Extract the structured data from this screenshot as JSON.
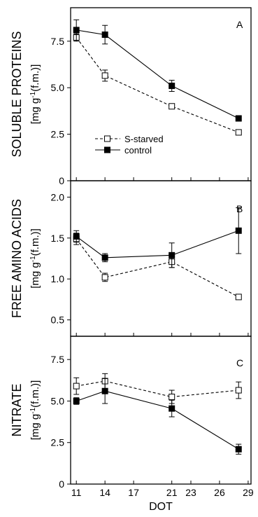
{
  "x_axis": {
    "label": "DOT",
    "ticks": [
      11,
      14,
      17,
      21,
      23,
      26,
      29
    ],
    "range": [
      10.4,
      29.3
    ]
  },
  "legend": {
    "placement": "middle-left of panel A",
    "entries": [
      "S-starved",
      "control"
    ]
  },
  "colors": {
    "ink": "#000000",
    "open_marker_fill": "#ffffff"
  },
  "chart_data": [
    {
      "panel": "A",
      "type": "line",
      "ylabel_line1": "SOLUBLE PROTEINS",
      "ylabel_line2": "[mg g",
      "ylabel_sup": "-1",
      "ylabel_tail": "(f.m.)]",
      "ylim": [
        0,
        9.3
      ],
      "yticks": [
        0,
        2.5,
        5.0,
        7.5
      ],
      "ytick_labels": [
        "0",
        "2.5",
        "5.0",
        "7.5"
      ],
      "x": [
        11,
        14,
        21,
        28
      ],
      "series": [
        {
          "name": "S-starved",
          "style": "dashed-open-square",
          "values": [
            7.7,
            5.65,
            4.0,
            2.6
          ],
          "errors": [
            0.2,
            0.3,
            0.1,
            0.1
          ]
        },
        {
          "name": "control",
          "style": "solid-filled-square",
          "values": [
            8.1,
            7.85,
            5.1,
            3.35
          ],
          "errors": [
            0.55,
            0.5,
            0.3,
            0.15
          ]
        }
      ]
    },
    {
      "panel": "B",
      "type": "line",
      "ylabel_line1": "FREE AMINO ACIDS",
      "ylabel_line2": "[mg g",
      "ylabel_sup": "-1",
      "ylabel_tail": "(f.m.)]",
      "ylim": [
        0.3,
        2.2
      ],
      "yticks": [
        0.5,
        1.0,
        1.5,
        2.0
      ],
      "ytick_labels": [
        "0.5",
        "1.0",
        "1.5",
        "2.0"
      ],
      "x": [
        11,
        14,
        21,
        28
      ],
      "series": [
        {
          "name": "S-starved",
          "style": "dashed-open-square",
          "values": [
            1.49,
            1.02,
            1.21,
            0.78
          ],
          "errors": [
            0.07,
            0.05,
            0.07,
            0.0
          ]
        },
        {
          "name": "control",
          "style": "solid-filled-square",
          "values": [
            1.52,
            1.26,
            1.29,
            1.59
          ],
          "errors": [
            0.07,
            0.05,
            0.15,
            0.28
          ]
        }
      ]
    },
    {
      "panel": "C",
      "type": "line",
      "ylabel_line1": "NITRATE",
      "ylabel_line2": "[mg g",
      "ylabel_sup": "-1",
      "ylabel_tail": "(f.m.)]",
      "ylim": [
        0,
        8.9
      ],
      "yticks": [
        0,
        2.5,
        5.0,
        7.5
      ],
      "ytick_labels": [
        "0",
        "2.5",
        "5.0",
        "7.5"
      ],
      "x": [
        11,
        14,
        21,
        28
      ],
      "series": [
        {
          "name": "S-starved",
          "style": "dashed-open-square",
          "values": [
            5.9,
            6.2,
            5.25,
            5.65
          ],
          "errors": [
            0.5,
            0.45,
            0.4,
            0.5
          ]
        },
        {
          "name": "control",
          "style": "solid-filled-square",
          "values": [
            5.0,
            5.6,
            4.55,
            2.1
          ],
          "errors": [
            0.2,
            0.75,
            0.5,
            0.3
          ]
        }
      ]
    }
  ]
}
